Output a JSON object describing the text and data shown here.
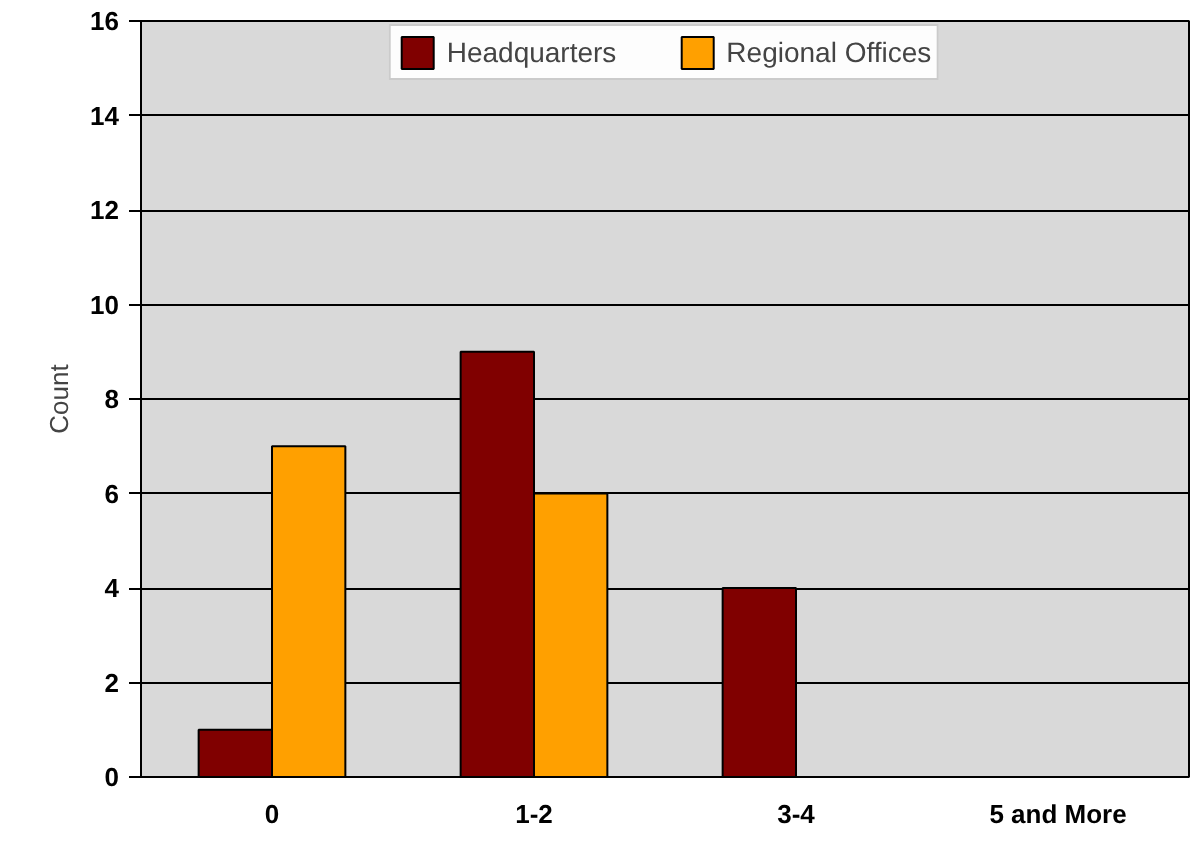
{
  "chart_data": {
    "type": "bar",
    "ylabel": "Count",
    "categories": [
      "0",
      "1-2",
      "3-4",
      "5 and More"
    ],
    "series": [
      {
        "name": "Headquarters",
        "color": "#800000",
        "values": [
          1,
          9,
          4,
          0
        ]
      },
      {
        "name": "Regional Offices",
        "color": "#ffa000",
        "values": [
          7,
          6,
          0,
          0
        ]
      }
    ],
    "ylim": [
      0,
      16
    ],
    "yticks": [
      0,
      2,
      4,
      6,
      8,
      10,
      12,
      14,
      16
    ],
    "grid": "y",
    "legend": "top"
  }
}
